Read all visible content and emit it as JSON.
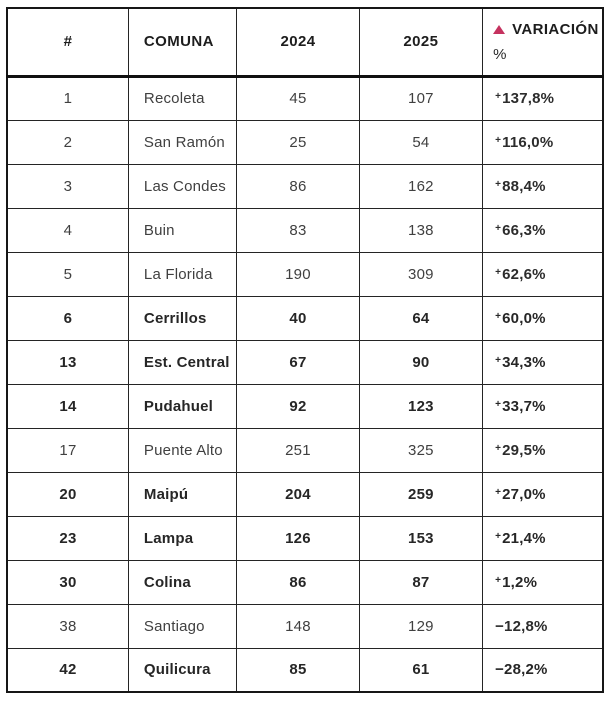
{
  "colors": {
    "accent_triangle": "#c5325f",
    "border": "#161616",
    "text_regular": "#404040",
    "text_bold": "#262626"
  },
  "header": {
    "rank": "#",
    "comuna": "COMUNA",
    "y2024": "2024",
    "y2025": "2025",
    "variacion_label": "VARIACIÓN",
    "variacion_pct": "%",
    "variacion_icon": "up-triangle-icon"
  },
  "rows": [
    {
      "rank": "1",
      "comuna": "Recoleta",
      "y2024": "45",
      "y2025": "107",
      "variacion": "+137,8%",
      "bold": false
    },
    {
      "rank": "2",
      "comuna": "San Ramón",
      "y2024": "25",
      "y2025": "54",
      "variacion": "+116,0%",
      "bold": false
    },
    {
      "rank": "3",
      "comuna": "Las Condes",
      "y2024": "86",
      "y2025": "162",
      "variacion": "+88,4%",
      "bold": false
    },
    {
      "rank": "4",
      "comuna": "Buin",
      "y2024": "83",
      "y2025": "138",
      "variacion": "+66,3%",
      "bold": false
    },
    {
      "rank": "5",
      "comuna": "La Florida",
      "y2024": "190",
      "y2025": "309",
      "variacion": "+62,6%",
      "bold": false
    },
    {
      "rank": "6",
      "comuna": "Cerrillos",
      "y2024": "40",
      "y2025": "64",
      "variacion": "+60,0%",
      "bold": true
    },
    {
      "rank": "13",
      "comuna": "Est. Central",
      "y2024": "67",
      "y2025": "90",
      "variacion": "+34,3%",
      "bold": true
    },
    {
      "rank": "14",
      "comuna": "Pudahuel",
      "y2024": "92",
      "y2025": "123",
      "variacion": "+33,7%",
      "bold": true
    },
    {
      "rank": "17",
      "comuna": "Puente Alto",
      "y2024": "251",
      "y2025": "325",
      "variacion": "+29,5%",
      "bold": false
    },
    {
      "rank": "20",
      "comuna": "Maipú",
      "y2024": "204",
      "y2025": "259",
      "variacion": "+27,0%",
      "bold": true
    },
    {
      "rank": "23",
      "comuna": "Lampa",
      "y2024": "126",
      "y2025": "153",
      "variacion": "+21,4%",
      "bold": true
    },
    {
      "rank": "30",
      "comuna": "Colina",
      "y2024": "86",
      "y2025": "87",
      "variacion": "+1,2%",
      "bold": true
    },
    {
      "rank": "38",
      "comuna": "Santiago",
      "y2024": "148",
      "y2025": "129",
      "variacion": "−12,8%",
      "bold": false
    },
    {
      "rank": "42",
      "comuna": "Quilicura",
      "y2024": "85",
      "y2025": "61",
      "variacion": "−28,2%",
      "bold": true
    }
  ],
  "chart_data": {
    "type": "table",
    "title": "",
    "columns": [
      "#",
      "COMUNA",
      "2024",
      "2025",
      "VARIACIÓN %"
    ],
    "rows": [
      [
        1,
        "Recoleta",
        45,
        107,
        "+137,8%"
      ],
      [
        2,
        "San Ramón",
        25,
        54,
        "+116,0%"
      ],
      [
        3,
        "Las Condes",
        86,
        162,
        "+88,4%"
      ],
      [
        4,
        "Buin",
        83,
        138,
        "+66,3%"
      ],
      [
        5,
        "La Florida",
        190,
        309,
        "+62,6%"
      ],
      [
        6,
        "Cerrillos",
        40,
        64,
        "+60,0%"
      ],
      [
        13,
        "Est. Central",
        67,
        90,
        "+34,3%"
      ],
      [
        14,
        "Pudahuel",
        92,
        123,
        "+33,7%"
      ],
      [
        17,
        "Puente Alto",
        251,
        325,
        "+29,5%"
      ],
      [
        20,
        "Maipú",
        204,
        259,
        "+27,0%"
      ],
      [
        23,
        "Lampa",
        126,
        153,
        "+21,4%"
      ],
      [
        30,
        "Colina",
        86,
        87,
        "+1,2%"
      ],
      [
        38,
        "Santiago",
        148,
        129,
        "−12,8%"
      ],
      [
        42,
        "Quilicura",
        85,
        61,
        "−28,2%"
      ]
    ]
  }
}
